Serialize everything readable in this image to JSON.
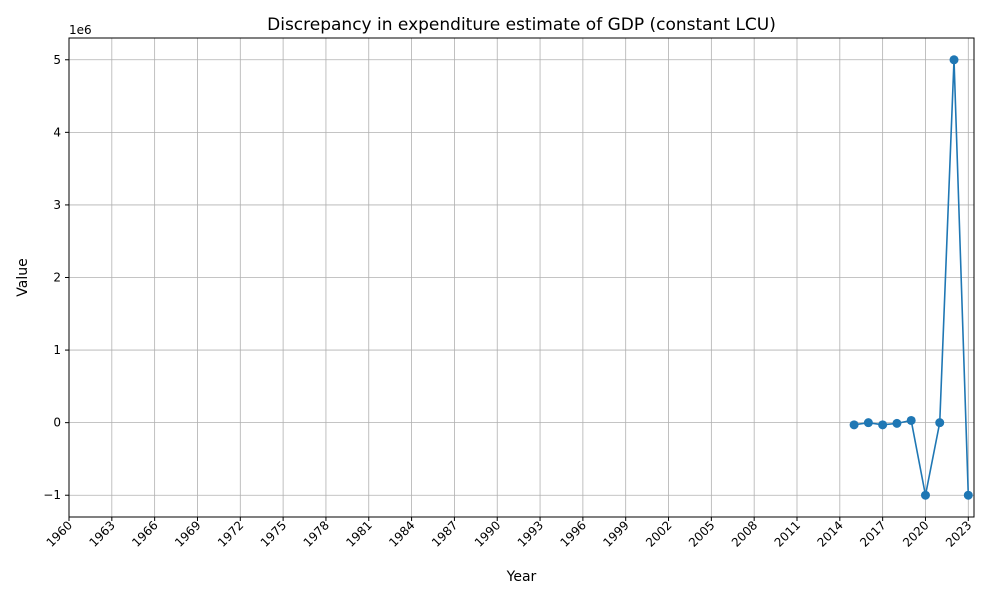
{
  "chart_data": {
    "type": "line",
    "title": "Discrepancy in expenditure estimate of GDP (constant LCU)",
    "xlabel": "Year",
    "ylabel": "Value",
    "y_offset_label": "1e6",
    "xlim": [
      1960,
      2023.4
    ],
    "ylim": [
      -1300000,
      5300000
    ],
    "x_ticks": [
      1960,
      1963,
      1966,
      1969,
      1972,
      1975,
      1978,
      1981,
      1984,
      1987,
      1990,
      1993,
      1996,
      1999,
      2002,
      2005,
      2008,
      2011,
      2014,
      2017,
      2020,
      2023
    ],
    "y_ticks": [
      -1000000,
      0,
      1000000,
      2000000,
      3000000,
      4000000,
      5000000
    ],
    "y_tick_labels": [
      "−1",
      "0",
      "1",
      "2",
      "3",
      "4",
      "5"
    ],
    "grid": true,
    "series": [
      {
        "color": "#1f77b4",
        "marker": "circle",
        "x": [
          2015,
          2016,
          2017,
          2018,
          2019,
          2020,
          2021,
          2022,
          2023
        ],
        "y": [
          -30000,
          0,
          -30000,
          -10000,
          30000,
          -1000000,
          0,
          5000000,
          -1000000
        ]
      }
    ]
  }
}
